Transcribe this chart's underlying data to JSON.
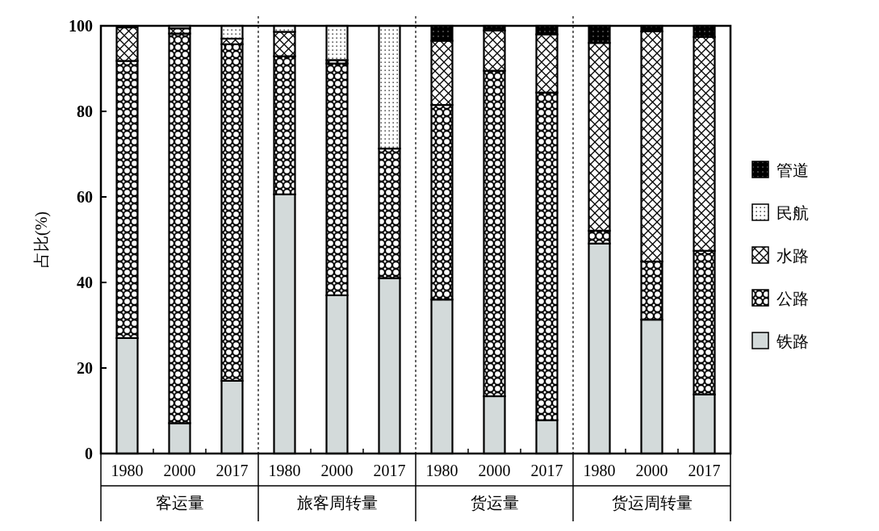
{
  "chart_data": {
    "type": "bar",
    "stacked": true,
    "ylabel": "占比(%)",
    "categories": [
      "1980",
      "2000",
      "2017",
      "1980",
      "2000",
      "2017",
      "1980",
      "2000",
      "2017",
      "1980",
      "2000",
      "2017"
    ],
    "annotations": [
      "客运量",
      "旅客周转量",
      "货运量",
      "货运周转量"
    ],
    "series": [
      {
        "name": "铁路",
        "color": "#d3dada",
        "values": [
          27,
          7.1,
          17,
          60.6,
          37,
          41,
          36,
          13.4,
          7.8,
          49.1,
          31.3,
          13.8
        ]
      },
      {
        "name": "公路",
        "color": "#000000",
        "values": [
          64.8,
          91.1,
          78.7,
          32.3,
          54.2,
          30.3,
          45.5,
          76.1,
          76.6,
          3.0,
          13.6,
          33.6
        ]
      },
      {
        "name": "水路",
        "color": "#000000",
        "values": [
          7.8,
          1.2,
          1.3,
          5.7,
          0.8,
          0,
          15,
          9.4,
          13.6,
          43.9,
          53.8,
          50
        ]
      },
      {
        "name": "民航",
        "color": "#000000",
        "values": [
          null,
          0.6,
          3,
          1.4,
          8,
          28.7,
          0,
          0,
          0,
          0,
          0,
          0
        ]
      },
      {
        "name": "管道",
        "color": "#000000",
        "values": [
          0,
          0,
          0,
          0,
          0,
          0,
          3.5,
          1.1,
          2.0,
          4.0,
          1.3,
          2.6
        ]
      }
    ],
    "ylim": [
      0,
      100
    ],
    "yticks": [
      0,
      20,
      40,
      60,
      80,
      100
    ],
    "grid": false,
    "legend": "right"
  }
}
